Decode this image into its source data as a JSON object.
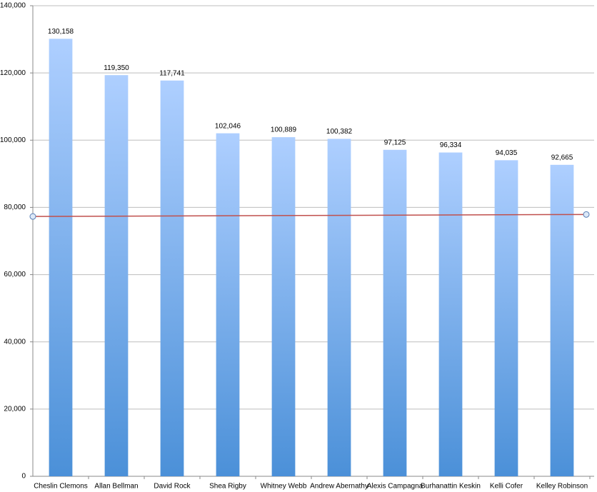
{
  "chart_data": {
    "type": "bar",
    "categories": [
      "Cheslin Clemons",
      "Allan Bellman",
      "David Rock",
      "Shea Rigby",
      "Whitney Webb",
      "Andrew Abernathy",
      "Alexis Campagna",
      "Burhanattin Keskin",
      "Kelli Cofer",
      "Kelley Robinson"
    ],
    "values": [
      130158,
      119350,
      117741,
      102046,
      100889,
      100382,
      97125,
      96334,
      94035,
      92665
    ],
    "value_labels": [
      "130,158",
      "119,350",
      "117,741",
      "102,046",
      "100,889",
      "100,382",
      "97,125",
      "96,334",
      "94,035",
      "92,665"
    ],
    "gradient": [
      "#aecfff",
      "#4b90d8"
    ],
    "trend_line": {
      "values": [
        77300,
        77900
      ],
      "color": "#c0504d"
    },
    "ylim": [
      0,
      140000
    ],
    "yticks": [
      0,
      {
        "value": 20000,
        "label": "20,000"
      },
      {
        "value": 40000,
        "label": "40,000"
      },
      {
        "value": 60000,
        "label": "60,000"
      },
      {
        "value": 80000,
        "label": "80,000"
      },
      {
        "value": 100000,
        "label": "100,000"
      },
      {
        "value": 120000,
        "label": "120,000"
      },
      {
        "value": 140000,
        "label": "140,000"
      }
    ],
    "grid": true
  }
}
